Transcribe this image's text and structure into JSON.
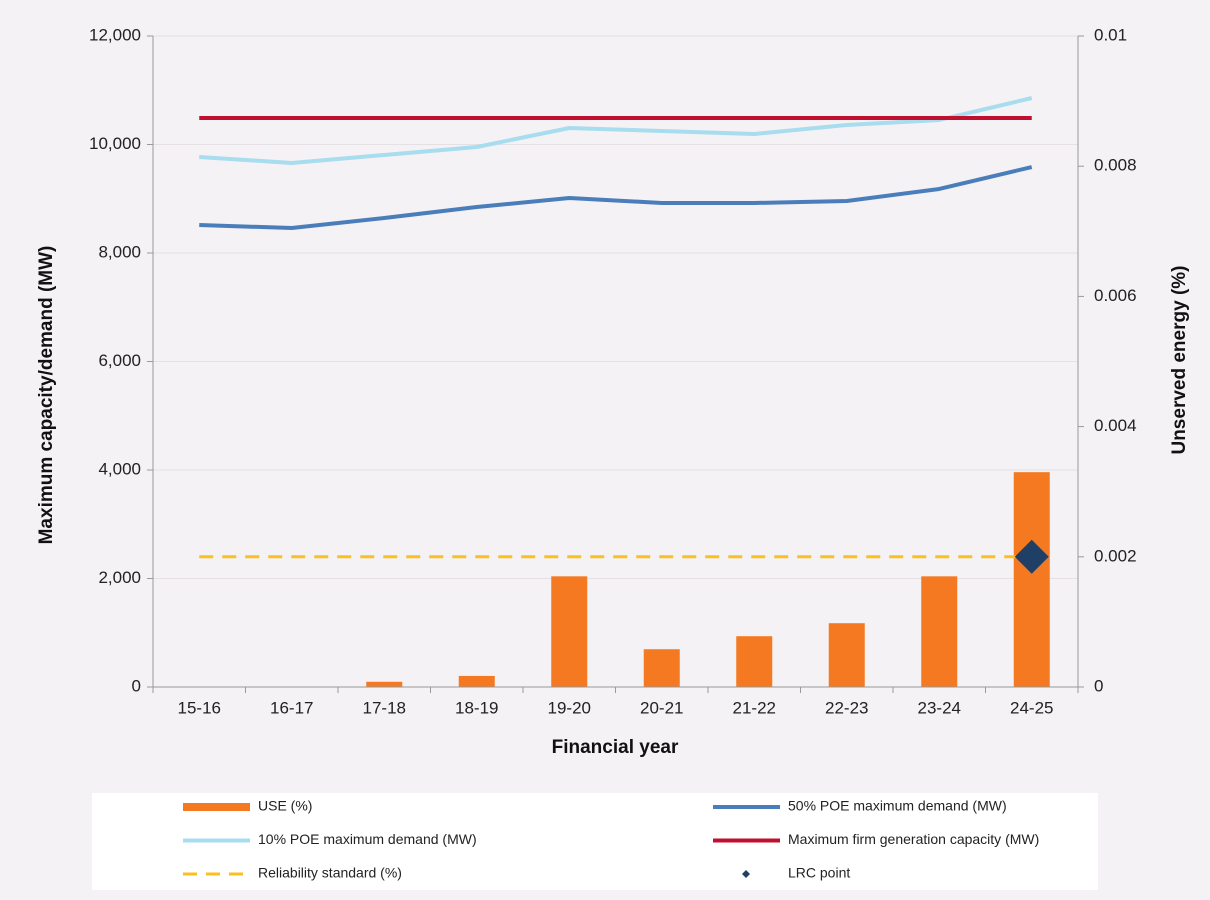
{
  "chart_data": {
    "type": "combo",
    "x_label": "Financial year",
    "y_label": "Maximum capacity/demand (MW)",
    "y2_label": "Unserved energy (%)",
    "categories": [
      "15-16",
      "16-17",
      "17-18",
      "18-19",
      "19-20",
      "20-21",
      "21-22",
      "22-23",
      "23-24",
      "24-25"
    ],
    "ylim": [
      0,
      12000
    ],
    "yticks": [
      0,
      {
        "value": 2000,
        "label": "2,000"
      },
      {
        "value": 4000,
        "label": "4,000"
      },
      {
        "value": 6000,
        "label": "6,000"
      },
      {
        "value": 8000,
        "label": "8,000"
      },
      {
        "value": 10000,
        "label": "10,000"
      },
      {
        "value": 12000,
        "label": "12,000"
      }
    ],
    "y2lim": [
      0,
      0.01
    ],
    "y2ticks": [
      0,
      0.002,
      0.004,
      0.006,
      0.008,
      0.01
    ],
    "grid": true,
    "series": [
      {
        "name": "USE (%)",
        "type": "bar",
        "axis": "y2",
        "color": "#f47920",
        "values": [
          0,
          0,
          8e-05,
          0.00017,
          0.0017,
          0.00058,
          0.00078,
          0.00098,
          0.0017,
          0.0033
        ]
      },
      {
        "name": "50% POE maximum demand (MW)",
        "type": "line",
        "color": "#4a7ebb",
        "values": [
          8516,
          8460,
          8645,
          8848,
          9014,
          8922,
          8922,
          8959,
          9180,
          9585
        ]
      },
      {
        "name": "10% POE maximum demand (MW)",
        "type": "line",
        "color": "#a8dcef",
        "values": [
          9770,
          9659,
          9807,
          9954,
          10304,
          10249,
          10194,
          10360,
          10452,
          10857
        ]
      },
      {
        "name": "Maximum firm generation capacity (MW)",
        "type": "line",
        "color": "#c0102f",
        "values": [
          10489,
          10489,
          10489,
          10489,
          10489,
          10489,
          10489,
          10489,
          10489,
          10489
        ]
      },
      {
        "name": "Reliability standard (%)",
        "type": "line",
        "axis": "y2",
        "dashed": true,
        "color": "#f9c020",
        "values": [
          0.002,
          0.002,
          0.002,
          0.002,
          0.002,
          0.002,
          0.002,
          0.002,
          0.002,
          0.002
        ]
      },
      {
        "name": "LRC point",
        "type": "scatter",
        "axis": "y2",
        "color": "#1f3f66",
        "values": [
          null,
          null,
          null,
          null,
          null,
          null,
          null,
          null,
          null,
          0.002
        ]
      }
    ]
  }
}
